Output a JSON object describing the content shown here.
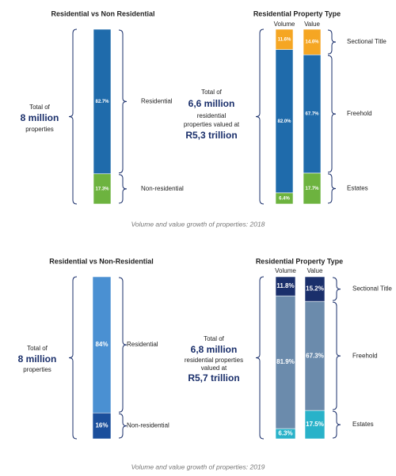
{
  "chart_data": [
    {
      "type": "stacked-bar",
      "title": "Residential vs Non Residential",
      "categories": [
        null
      ],
      "annotation": [
        "Total of",
        "8 million",
        "properties"
      ],
      "series": [
        {
          "name": "Non-residential",
          "color": "#6db33f",
          "values": [
            17.3
          ],
          "value_labels": [
            "17.3%"
          ]
        },
        {
          "name": "Residential",
          "color": "#1f6bab",
          "values": [
            82.7
          ],
          "value_labels": [
            "82.7%"
          ]
        }
      ]
    },
    {
      "type": "stacked-bar",
      "title": "Residential Property Type",
      "categories": [
        "Volume",
        "Value"
      ],
      "annotation": [
        "Total of",
        "6,6 million",
        "residential",
        "properties valued at",
        "R5,3 trillion"
      ],
      "caption": "Volume and value growth of properties: 2018",
      "series": [
        {
          "name": "Estates",
          "color": "#6db33f",
          "values": [
            6.4,
            17.7
          ],
          "value_labels": [
            "6.4%",
            "17.7%"
          ]
        },
        {
          "name": "Freehold",
          "color": "#1f6bab",
          "values": [
            82.0,
            67.7
          ],
          "value_labels": [
            "82.0%",
            "67.7%"
          ]
        },
        {
          "name": "Sectional Title",
          "color": "#f5a623",
          "values": [
            11.6,
            14.6
          ],
          "value_labels": [
            "11.6%",
            "14.6%"
          ]
        }
      ]
    },
    {
      "type": "stacked-bar",
      "title": "Residential vs Non-Residential",
      "categories": [
        null
      ],
      "annotation": [
        "Total of",
        "8 million",
        "properties"
      ],
      "series": [
        {
          "name": "Non-residential",
          "color": "#1b4f9c",
          "values": [
            16
          ],
          "value_labels": [
            "16%"
          ]
        },
        {
          "name": "Residential",
          "color": "#4a90d2",
          "values": [
            84
          ],
          "value_labels": [
            "84%"
          ]
        }
      ]
    },
    {
      "type": "stacked-bar",
      "title": "Residential Property Type",
      "categories": [
        "Volume",
        "Value"
      ],
      "annotation": [
        "Total of",
        "6,8 million",
        "residential properties",
        "valued at",
        "R5,7 trillion"
      ],
      "caption": "Volume and value growth of properties: 2019",
      "series": [
        {
          "name": "Estates",
          "color": "#29b2c9",
          "values": [
            6.3,
            17.5
          ],
          "value_labels": [
            "6.3%",
            "17.5%"
          ]
        },
        {
          "name": "Freehold",
          "color": "#6b8bac",
          "values": [
            81.9,
            67.3
          ],
          "value_labels": [
            "81.9%",
            "67.3%"
          ]
        },
        {
          "name": "Sectional Title",
          "color": "#1a2f6b",
          "values": [
            11.8,
            15.2
          ],
          "value_labels": [
            "11.8%",
            "15.2%"
          ]
        }
      ]
    }
  ]
}
